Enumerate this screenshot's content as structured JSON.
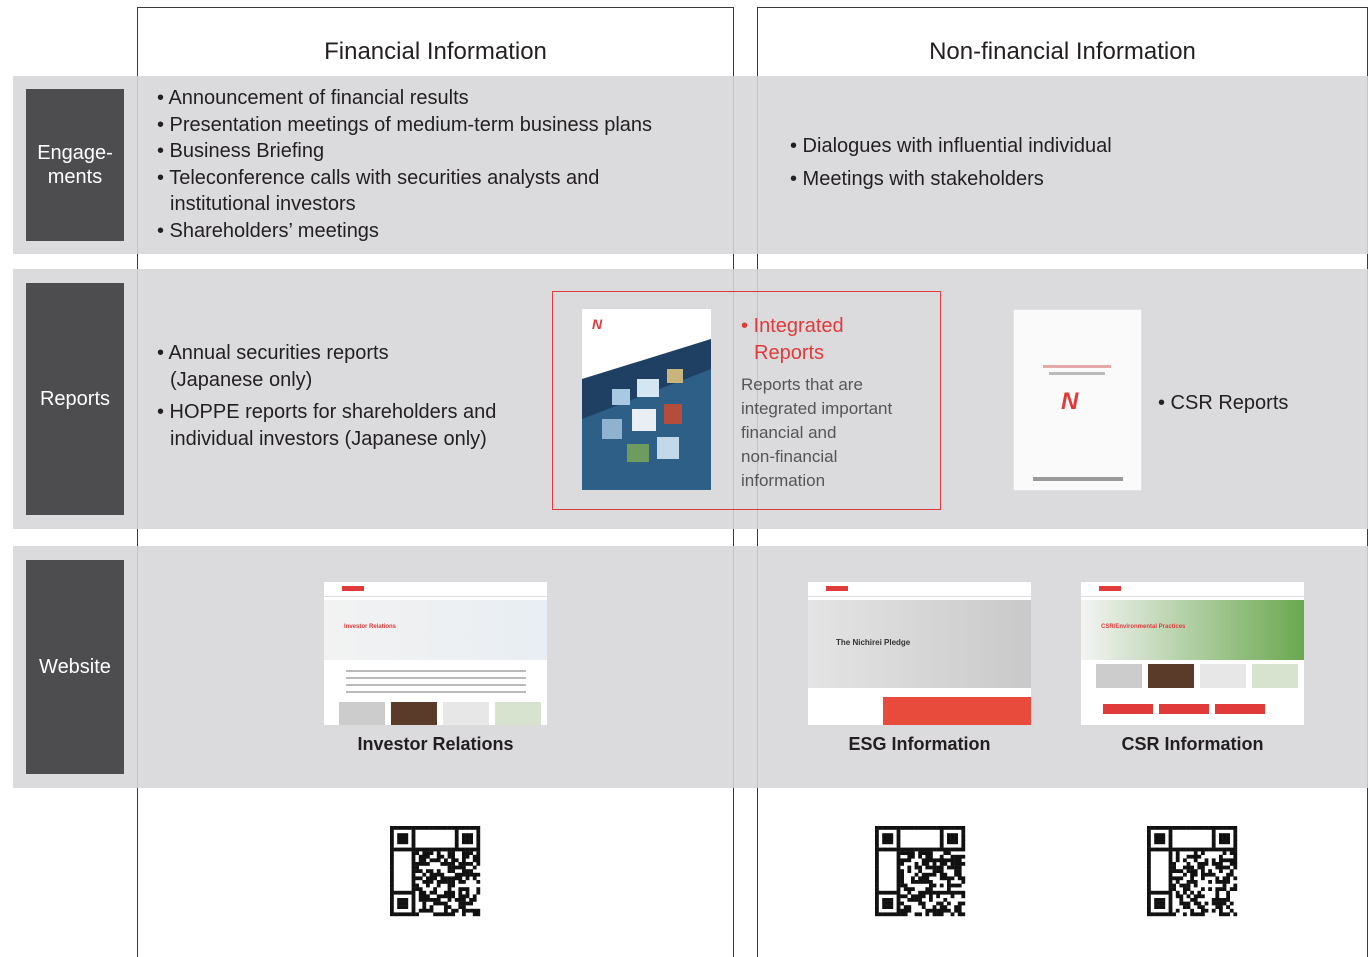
{
  "columns": [
    "Financial Information",
    "Non-financial Information"
  ],
  "rows": {
    "engagements": {
      "label": [
        "Engage-",
        "ments"
      ],
      "financial": [
        [
          "• Announcement of financial results"
        ],
        [
          "• Presentation meetings of medium-term business plans"
        ],
        [
          "• Business Briefing"
        ],
        [
          "• Teleconference calls with securities analysts and",
          "institutional investors"
        ],
        [
          "• Shareholders’ meetings"
        ]
      ],
      "nonfinancial": [
        [
          "• Dialogues with influential individual"
        ],
        [
          "• Meetings with stakeholders"
        ]
      ]
    },
    "reports": {
      "label": [
        "Reports"
      ],
      "financial": [
        [
          "• Annual securities reports",
          "(Japanese only)"
        ],
        [
          "• HOPPE reports for shareholders and",
          "individual investors (Japanese only)"
        ]
      ],
      "integrated": {
        "title": [
          "• Integrated",
          "Reports"
        ],
        "description": [
          "Reports that are",
          "integrated important",
          "financial and",
          "non-financial",
          "information"
        ]
      },
      "csr": "• CSR Reports"
    },
    "website": {
      "label": [
        "Website"
      ],
      "thumbnails": [
        {
          "caption": "Investor Relations",
          "banner": "Investor Relations"
        },
        {
          "caption": "ESG Information",
          "banner": "The Nichirei Pledge"
        },
        {
          "caption": "CSR Information",
          "banner": "CSR/Environmental Practices"
        }
      ]
    }
  }
}
